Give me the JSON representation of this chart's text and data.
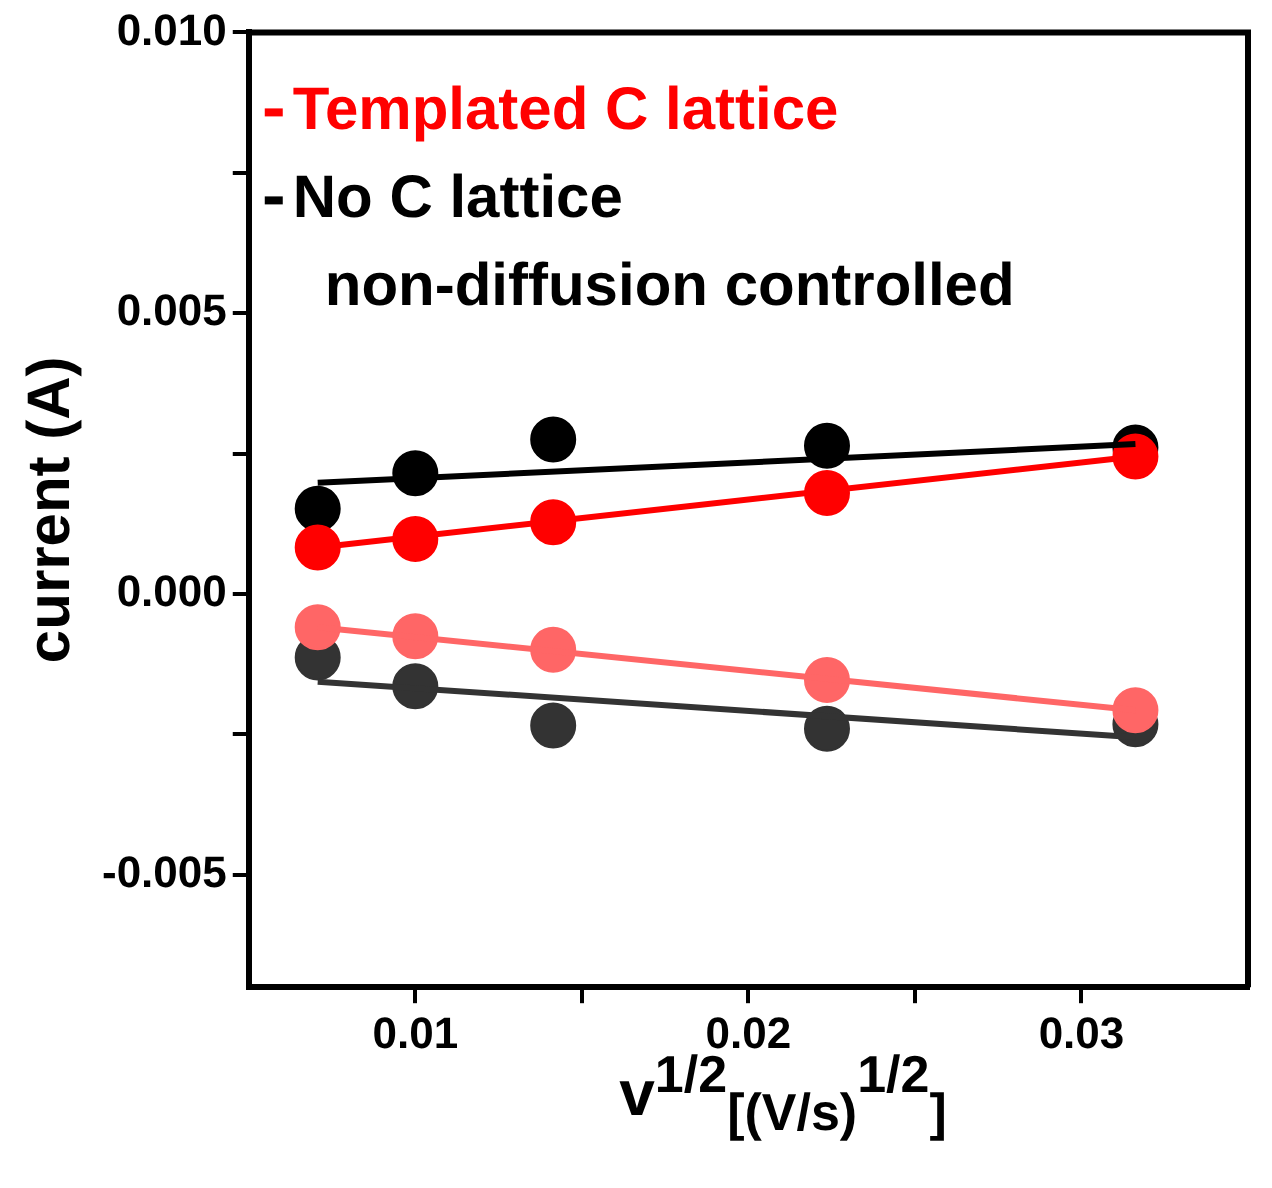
{
  "chart_data": {
    "type": "scatter",
    "xlabel": "v$^{1/2}$$_{[(V/s)}$$^{1/2}$$_{]}$",
    "ylabel": "current (A)",
    "xlim": [
      0.005,
      0.035
    ],
    "xticks": [
      0.01,
      0.02,
      0.03,
      {
        "value": 0.015,
        "label": null
      },
      {
        "value": 0.025,
        "label": null
      }
    ],
    "ylim": [
      -0.007,
      0.01
    ],
    "yticks": [
      {
        "value": 0.01,
        "label": "0.010"
      },
      {
        "value": 0.005,
        "label": "0.005"
      },
      {
        "value": 0,
        "label": "0.000"
      },
      {
        "value": -0.005,
        "label": "-0.005"
      },
      {
        "value": 0.0075,
        "label": null
      },
      {
        "value": 0.0025,
        "label": null
      },
      {
        "value": -0.0025,
        "label": null
      }
    ],
    "grid": false,
    "legend": "top left",
    "marker": "circle",
    "annotations": [
      "non-diffusion controlled"
    ],
    "x": [
      0.00707,
      0.01,
      0.01414,
      0.02236,
      0.03162
    ],
    "series": [
      {
        "name": "Templated C lattice",
        "color": "#ff0000",
        "values": [
          0.00083,
          0.00098,
          0.00128,
          0.0018,
          0.00245
        ]
      },
      {
        "name": "No C lattice",
        "color": "#000000",
        "values": [
          0.00152,
          0.00215,
          0.00275,
          0.00264,
          0.00261
        ]
      },
      {
        "color": "#ff6666",
        "values": [
          -0.00059,
          -0.00075,
          -0.00099,
          -0.00153,
          -0.00207
        ]
      },
      {
        "color": "#333333",
        "values": [
          -0.00113,
          -0.00164,
          -0.00234,
          -0.0024,
          -0.00232
        ]
      },
      {
        "type": "line",
        "marker": "none",
        "color": "#000000",
        "values": [
          0.00198,
          null,
          null,
          null,
          0.00267
        ]
      },
      {
        "type": "line",
        "marker": "none",
        "color": "#ff0000",
        "values": [
          0.00083,
          null,
          null,
          null,
          0.00245
        ]
      },
      {
        "type": "line",
        "marker": "none",
        "color": "#ff6666",
        "values": [
          -0.00059,
          null,
          null,
          null,
          -0.00207
        ]
      },
      {
        "type": "line",
        "marker": "none",
        "color": "#333333",
        "values": [
          -0.00156,
          null,
          null,
          null,
          -0.00255
        ]
      }
    ]
  }
}
